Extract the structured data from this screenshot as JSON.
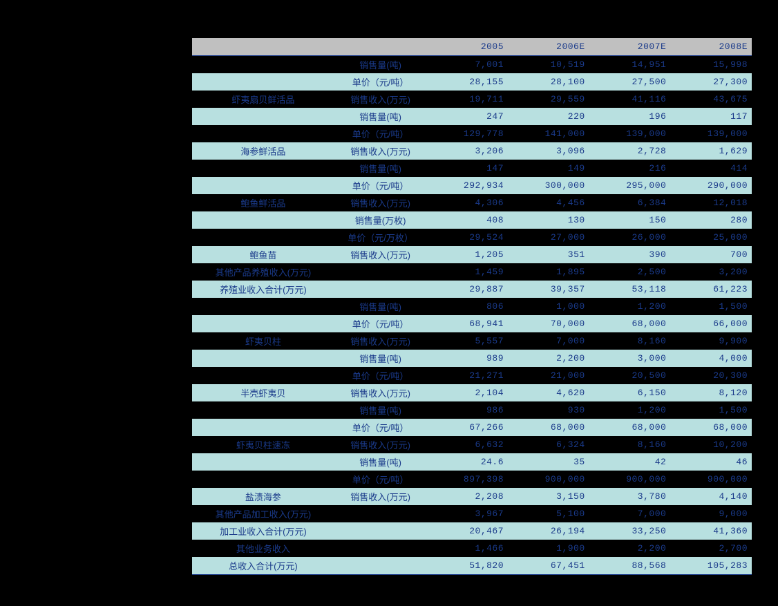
{
  "table": {
    "headers": [
      "",
      "",
      "2005",
      "2006E",
      "2007E",
      "2008E"
    ],
    "sections": [
      {
        "category": "虾夷扇贝鲜活品",
        "rows": [
          {
            "metric": "销售量(吨)",
            "vals": [
              "7,001",
              "10,519",
              "14,951",
              "15,998"
            ],
            "odd": false
          },
          {
            "metric": "单价（元/吨）",
            "vals": [
              "28,155",
              "28,100",
              "27,500",
              "27,300"
            ],
            "odd": true
          },
          {
            "metric": "销售收入(万元)",
            "vals": [
              "19,711",
              "29,559",
              "41,116",
              "43,675"
            ],
            "odd": false
          }
        ]
      },
      {
        "category": "海参鲜活品",
        "rows": [
          {
            "metric": "销售量(吨)",
            "vals": [
              "247",
              "220",
              "196",
              "117"
            ],
            "odd": true
          },
          {
            "metric": "单价（元/吨）",
            "vals": [
              "129,778",
              "141,000",
              "139,000",
              "139,000"
            ],
            "odd": false
          },
          {
            "metric": "销售收入(万元)",
            "vals": [
              "3,206",
              "3,096",
              "2,728",
              "1,629"
            ],
            "odd": true
          }
        ]
      },
      {
        "category": "鲍鱼鲜活品",
        "rows": [
          {
            "metric": "销售量(吨)",
            "vals": [
              "147",
              "149",
              "216",
              "414"
            ],
            "odd": false
          },
          {
            "metric": "单价（元/吨）",
            "vals": [
              "292,934",
              "300,000",
              "295,000",
              "290,000"
            ],
            "odd": true
          },
          {
            "metric": "销售收入(万元)",
            "vals": [
              "4,306",
              "4,456",
              "6,384",
              "12,018"
            ],
            "odd": false
          }
        ]
      },
      {
        "category": "鲍鱼苗",
        "rows": [
          {
            "metric": "销售量(万枚)",
            "vals": [
              "408",
              "130",
              "150",
              "280"
            ],
            "odd": true
          },
          {
            "metric": "单价（元/万枚）",
            "vals": [
              "29,524",
              "27,000",
              "26,000",
              "25,000"
            ],
            "odd": false
          },
          {
            "metric": "销售收入(万元)",
            "vals": [
              "1,205",
              "351",
              "390",
              "700"
            ],
            "odd": true
          }
        ]
      }
    ],
    "summary1": [
      {
        "label": "其他产品养殖收入(万元)",
        "vals": [
          "1,459",
          "1,895",
          "2,500",
          "3,200"
        ],
        "odd": false
      },
      {
        "label": "养殖业收入合计(万元)",
        "vals": [
          "29,887",
          "39,357",
          "53,118",
          "61,223"
        ],
        "odd": true
      }
    ],
    "sections2": [
      {
        "category": "虾夷贝柱",
        "rows": [
          {
            "metric": "销售量(吨)",
            "vals": [
              "806",
              "1,000",
              "1,200",
              "1,500"
            ],
            "odd": false
          },
          {
            "metric": "单价（元/吨）",
            "vals": [
              "68,941",
              "70,000",
              "68,000",
              "66,000"
            ],
            "odd": true
          },
          {
            "metric": "销售收入(万元)",
            "vals": [
              "5,557",
              "7,000",
              "8,160",
              "9,900"
            ],
            "odd": false
          }
        ]
      },
      {
        "category": "半壳虾夷贝",
        "rows": [
          {
            "metric": "销售量(吨)",
            "vals": [
              "989",
              "2,200",
              "3,000",
              "4,000"
            ],
            "odd": true
          },
          {
            "metric": "单价（元/吨）",
            "vals": [
              "21,271",
              "21,000",
              "20,500",
              "20,300"
            ],
            "odd": false
          },
          {
            "metric": "销售收入(万元)",
            "vals": [
              "2,104",
              "4,620",
              "6,150",
              "8,120"
            ],
            "odd": true
          }
        ]
      },
      {
        "category": "虾夷贝柱速冻",
        "rows": [
          {
            "metric": "销售量(吨)",
            "vals": [
              "986",
              "930",
              "1,200",
              "1,500"
            ],
            "odd": false
          },
          {
            "metric": "单价（元/吨）",
            "vals": [
              "67,266",
              "68,000",
              "68,000",
              "68,000"
            ],
            "odd": true
          },
          {
            "metric": "销售收入(万元)",
            "vals": [
              "6,632",
              "6,324",
              "8,160",
              "10,200"
            ],
            "odd": false
          }
        ]
      },
      {
        "category": "盐渍海参",
        "rows": [
          {
            "metric": "销售量(吨)",
            "vals": [
              "24.6",
              "35",
              "42",
              "46"
            ],
            "odd": true
          },
          {
            "metric": "单价（元/吨）",
            "vals": [
              "897,398",
              "900,000",
              "900,000",
              "900,000"
            ],
            "odd": false
          },
          {
            "metric": "销售收入(万元)",
            "vals": [
              "2,208",
              "3,150",
              "3,780",
              "4,140"
            ],
            "odd": true
          }
        ]
      }
    ],
    "summary2": [
      {
        "label": "其他产品加工收入(万元)",
        "vals": [
          "3,967",
          "5,100",
          "7,000",
          "9,000"
        ],
        "odd": false
      },
      {
        "label": "加工业收入合计(万元)",
        "vals": [
          "20,467",
          "26,194",
          "33,250",
          "41,360"
        ],
        "odd": true
      },
      {
        "label": "其他业务收入",
        "vals": [
          "1,466",
          "1,900",
          "2,200",
          "2,700"
        ],
        "odd": false
      },
      {
        "label": "总收入合计(万元)",
        "vals": [
          "51,820",
          "67,451",
          "88,568",
          "105,283"
        ],
        "odd": true
      }
    ]
  }
}
